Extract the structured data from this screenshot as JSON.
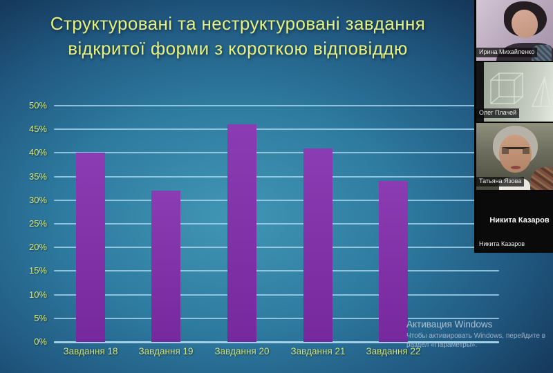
{
  "slide": {
    "title_line1": "Структуровані та неструктуровані завдання",
    "title_line2": "відкритої форми з короткою відповіддю"
  },
  "chart_data": {
    "type": "bar",
    "title": "Структуровані та неструктуровані завдання відкритої форми з короткою відповіддю",
    "categories": [
      "Завдання 18",
      "Завдання 19",
      "Завдання 20",
      "Завдання 21",
      "Завдання 22"
    ],
    "values": [
      40,
      32,
      46,
      41,
      34
    ],
    "xlabel": "",
    "ylabel": "",
    "ylim": [
      0,
      50
    ],
    "ytick_values": [
      0,
      5,
      10,
      15,
      20,
      25,
      30,
      35,
      40,
      45,
      50
    ],
    "ytick_labels": [
      "0%",
      "5%",
      "10%",
      "15%",
      "20%",
      "25%",
      "30%",
      "35%",
      "40%",
      "45%",
      "50%"
    ],
    "grid": true,
    "legend": false,
    "bar_color": "#8233ab",
    "gridline_color": "#a9d6ec",
    "tick_label_color": "#dcea72"
  },
  "watermark": {
    "line1": "Активация Windows",
    "line2": "Чтобы активировать Windows, перейдите в",
    "line3": "раздел «Параметры»."
  },
  "participants": [
    {
      "name": "Ирина Михайленко",
      "kind": "video"
    },
    {
      "name": "Олег Плачей",
      "kind": "video-whiteboard"
    },
    {
      "name": "Татьяна Язова",
      "kind": "video"
    },
    {
      "name": "Никита Казаров",
      "kind": "camera-off",
      "display_text": "Никита Казаров"
    }
  ]
}
